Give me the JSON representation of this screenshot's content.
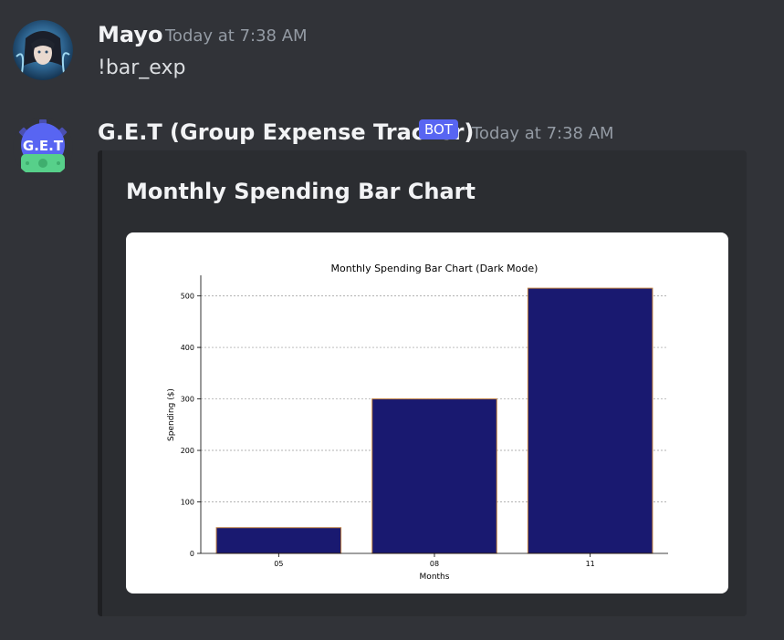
{
  "messages": [
    {
      "author": "Mayo",
      "timestamp": "Today at 7:38 AM",
      "content": "!bar_exp"
    },
    {
      "author": "G.E.T (Group Expense Tracker)",
      "badge": "BOT",
      "timestamp": "Today at 7:38 AM",
      "avatar_text": "G.E.T",
      "embed": {
        "title": "Monthly Spending Bar Chart"
      }
    }
  ],
  "colors": {
    "background": "#313338",
    "embed_bg": "#2b2d31",
    "bot_badge": "#5865f2",
    "bar_fill": "#191970",
    "bar_edge": "#c08040",
    "bot_avatar_bg": "#5865f2",
    "bot_avatar_money": "#57d08a"
  },
  "chart_data": {
    "type": "bar",
    "title": "Monthly Spending Bar Chart (Dark Mode)",
    "xlabel": "Months",
    "ylabel": "Spending ($)",
    "categories": [
      "05",
      "08",
      "11"
    ],
    "values": [
      50,
      300,
      515
    ],
    "ylim": [
      0,
      540
    ],
    "yticks": [
      "0",
      "100",
      "200",
      "300",
      "400",
      "500"
    ],
    "grid": true
  }
}
